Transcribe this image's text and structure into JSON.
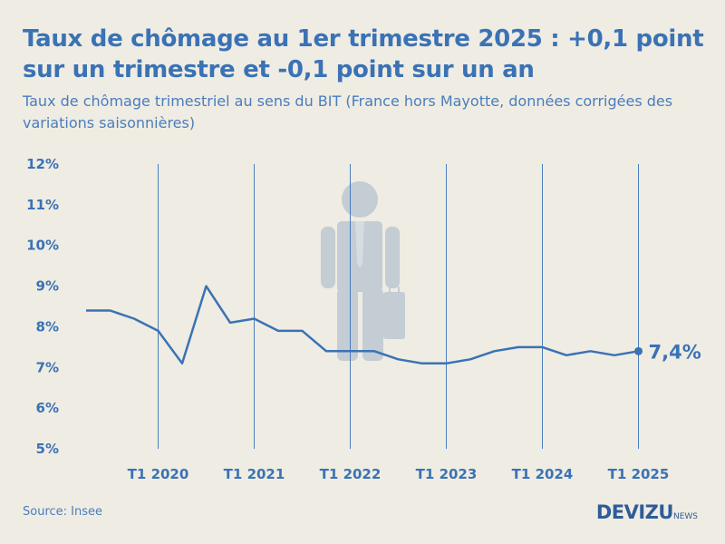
{
  "header": {
    "title": "Taux de chômage au 1er trimestre 2025 : +0,1 point sur un trimestre et -0,1 point sur un an",
    "subtitle": "Taux de chômage trimestriel au sens du BIT (France hors Mayotte, données corrigées des variations saisonnières)"
  },
  "footer": {
    "source": "Source: Insee",
    "logo_main": "DEVIZU",
    "logo_suffix": "NEWS"
  },
  "colors": {
    "background": "#efece3",
    "line": "#3a72b5",
    "text": "#3a72b5",
    "figure": "#c3cdd3"
  },
  "icon": "businessman-with-briefcase-icon",
  "chart_data": {
    "type": "line",
    "title": "Taux de chômage au 1er trimestre 2025 : +0,1 point sur un trimestre et -0,1 point sur un an",
    "subtitle": "Taux de chômage trimestriel au sens du BIT (France hors Mayotte, données corrigées des variations saisonnières)",
    "xlabel": "",
    "ylabel": "",
    "ylim": [
      5,
      12
    ],
    "yticks": [
      "5%",
      "6%",
      "7%",
      "8%",
      "9%",
      "10%",
      "11%",
      "12%"
    ],
    "xticks": [
      "T1 2020",
      "T1 2021",
      "T1 2022",
      "T1 2023",
      "T1 2024",
      "T1 2025"
    ],
    "x": [
      "T2 2019",
      "T3 2019",
      "T4 2019",
      "T1 2020",
      "T2 2020",
      "T3 2020",
      "T4 2020",
      "T1 2021",
      "T2 2021",
      "T3 2021",
      "T4 2021",
      "T1 2022",
      "T2 2022",
      "T3 2022",
      "T4 2022",
      "T1 2023",
      "T2 2023",
      "T3 2023",
      "T4 2023",
      "T1 2024",
      "T2 2024",
      "T3 2024",
      "T4 2024",
      "T1 2025"
    ],
    "series": [
      {
        "values": [
          8.4,
          8.4,
          8.2,
          7.9,
          7.1,
          9.0,
          8.1,
          8.2,
          7.9,
          7.9,
          7.4,
          7.4,
          7.4,
          7.2,
          7.1,
          7.1,
          7.2,
          7.4,
          7.5,
          7.5,
          7.3,
          7.4,
          7.3,
          7.4
        ]
      }
    ],
    "grid": "vertical lines at T1 of each year",
    "annotation": {
      "label": "7,4%",
      "at": "T1 2025"
    }
  }
}
